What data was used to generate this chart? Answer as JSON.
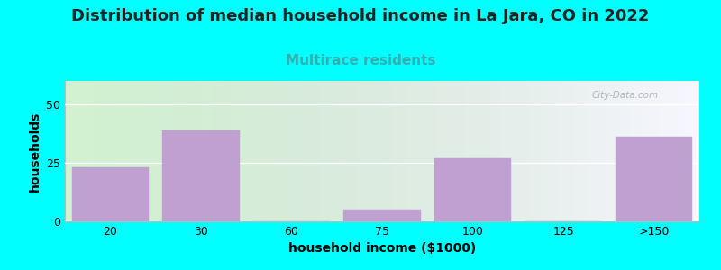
{
  "title": "Distribution of median household income in La Jara, CO in 2022",
  "subtitle": "Multirace residents",
  "xlabel": "household income ($1000)",
  "ylabel": "households",
  "background_color": "#00FFFF",
  "plot_bg_left": "#d8f0d8",
  "plot_bg_right": "#f8f8ff",
  "bar_color": "#C0A0D0",
  "bar_edgecolor": "#C0A0D0",
  "categories": [
    "20",
    "30",
    "60",
    "75",
    "100",
    "125",
    ">150"
  ],
  "values": [
    23,
    39,
    0,
    5,
    27,
    0,
    36
  ],
  "ylim": [
    0,
    60
  ],
  "yticks": [
    0,
    25,
    50
  ],
  "title_fontsize": 13,
  "subtitle_fontsize": 11,
  "subtitle_color": "#30b0b0",
  "axis_label_fontsize": 10,
  "tick_fontsize": 9,
  "watermark_text": "City-Data.com",
  "watermark_color": "#aaaaaa",
  "grid_color": "#ffffff",
  "title_color": "#222222"
}
